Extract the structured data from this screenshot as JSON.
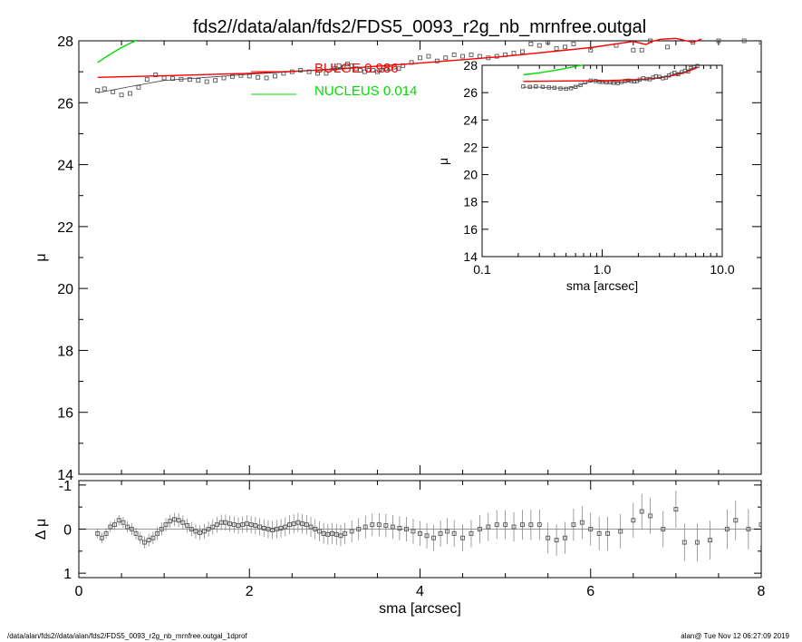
{
  "chart_data": [
    {
      "id": "main",
      "type": "scatter",
      "title": "fds2//data/alan/fds2/FDS5_0093_r2g_nb_mrnfree.outgal",
      "xlabel": "",
      "ylabel": "μ",
      "xlim": [
        0,
        8
      ],
      "ylim": [
        28,
        14
      ],
      "yticks": [
        14,
        16,
        18,
        20,
        22,
        24,
        26,
        28
      ],
      "grid": false,
      "legend": [
        {
          "label": "BULGE  0.986",
          "color": "#ff0000"
        },
        {
          "label": "NUCLEUS  0.014",
          "color": "#00dd00"
        }
      ],
      "series": [
        {
          "name": "data",
          "marker": "square",
          "color": "#555555",
          "x": [
            0.22,
            0.3,
            0.4,
            0.5,
            0.6,
            0.7,
            0.8,
            0.9,
            1.0,
            1.1,
            1.2,
            1.3,
            1.4,
            1.5,
            1.6,
            1.7,
            1.8,
            1.9,
            2.0,
            2.1,
            2.2,
            2.3,
            2.4,
            2.5,
            2.6,
            2.7,
            2.8,
            2.9,
            3.0,
            3.05,
            3.1,
            3.15,
            3.2,
            3.25,
            3.3,
            3.35,
            3.4,
            3.45,
            3.5,
            3.55,
            3.6,
            3.65,
            3.7,
            3.75,
            3.8,
            3.9,
            4.0,
            4.1,
            4.2,
            4.3,
            4.4,
            4.5,
            4.6,
            4.7,
            4.8,
            4.9,
            5.0,
            5.1,
            5.2,
            5.3,
            5.4,
            5.5,
            5.6,
            5.7,
            5.8,
            6.0,
            6.3,
            6.5,
            6.6,
            6.7,
            6.9,
            7.2,
            7.5,
            7.8,
            8.0
          ],
          "y": [
            26.4,
            26.45,
            26.35,
            26.25,
            26.3,
            26.5,
            26.75,
            26.9,
            26.8,
            26.78,
            26.76,
            26.75,
            26.72,
            26.68,
            26.72,
            26.8,
            26.85,
            26.88,
            26.86,
            26.82,
            26.8,
            26.86,
            26.95,
            27.0,
            27.05,
            27.0,
            26.95,
            26.95,
            27.1,
            27.2,
            27.15,
            27.25,
            27.2,
            27.1,
            27.05,
            27.0,
            27.05,
            27.05,
            27.0,
            27.05,
            27.1,
            27.1,
            27.15,
            27.1,
            27.2,
            27.3,
            27.45,
            27.5,
            27.35,
            27.45,
            27.55,
            27.5,
            27.55,
            27.5,
            27.45,
            27.5,
            27.55,
            27.6,
            27.65,
            27.9,
            27.85,
            27.95,
            27.75,
            27.8,
            27.9,
            27.7,
            27.85,
            27.7,
            27.7,
            28.0,
            27.8,
            27.95,
            28.0,
            28.0,
            27.95
          ]
        },
        {
          "name": "BULGE",
          "type": "line",
          "color": "#ff0000",
          "x": [
            0.22,
            1.0,
            2.0,
            3.0,
            4.0,
            5.0,
            6.0,
            6.5,
            6.65,
            6.72,
            6.82,
            7.0,
            7.2,
            7.3
          ],
          "y": [
            26.82,
            26.87,
            26.95,
            27.08,
            27.28,
            27.5,
            27.78,
            27.98,
            27.88,
            27.98,
            28.05,
            28.08,
            27.95,
            28.06
          ]
        },
        {
          "name": "NUCLEUS",
          "type": "line",
          "color": "#00dd00",
          "x": [
            0.22,
            0.3,
            0.4,
            0.5,
            0.6,
            0.68
          ],
          "y": [
            27.3,
            27.45,
            27.62,
            27.78,
            27.92,
            28.02
          ]
        },
        {
          "name": "total",
          "type": "line",
          "color": "#444444",
          "x": [
            0.22,
            0.6,
            1.0,
            1.5,
            2.0,
            2.5,
            3.0,
            3.3
          ],
          "y": [
            26.32,
            26.52,
            26.72,
            26.82,
            26.92,
            27.0,
            27.1,
            27.15
          ]
        }
      ]
    },
    {
      "id": "residual",
      "type": "scatter",
      "xlabel": "sma [arcsec]",
      "ylabel": "Δ μ",
      "xlim": [
        0,
        8
      ],
      "ylim": [
        -1.1,
        1.1
      ],
      "xticks": [
        0,
        2,
        4,
        6,
        8
      ],
      "yticks": [
        1,
        0,
        -1
      ],
      "grid": false,
      "series": [
        {
          "name": "residuals",
          "marker": "square",
          "color": "#555555",
          "x": [
            0.22,
            0.27,
            0.32,
            0.37,
            0.42,
            0.47,
            0.52,
            0.57,
            0.62,
            0.67,
            0.72,
            0.77,
            0.82,
            0.87,
            0.92,
            0.97,
            1.02,
            1.07,
            1.12,
            1.17,
            1.22,
            1.27,
            1.32,
            1.37,
            1.42,
            1.47,
            1.52,
            1.57,
            1.62,
            1.67,
            1.72,
            1.77,
            1.82,
            1.87,
            1.92,
            1.97,
            2.02,
            2.07,
            2.12,
            2.17,
            2.22,
            2.27,
            2.32,
            2.37,
            2.42,
            2.47,
            2.52,
            2.57,
            2.62,
            2.67,
            2.72,
            2.77,
            2.82,
            2.87,
            2.92,
            2.97,
            3.02,
            3.07,
            3.12,
            3.2,
            3.28,
            3.36,
            3.44,
            3.52,
            3.6,
            3.68,
            3.76,
            3.84,
            3.92,
            4.0,
            4.08,
            4.16,
            4.24,
            4.32,
            4.4,
            4.5,
            4.6,
            4.7,
            4.8,
            4.9,
            5.0,
            5.1,
            5.2,
            5.3,
            5.4,
            5.5,
            5.6,
            5.7,
            5.8,
            5.9,
            6.0,
            6.1,
            6.2,
            6.35,
            6.5,
            6.6,
            6.7,
            6.85,
            7.0,
            7.1,
            7.25,
            7.4,
            7.6,
            7.7,
            7.85,
            8.0
          ],
          "y": [
            0.1,
            0.2,
            0.1,
            -0.05,
            -0.1,
            -0.2,
            -0.15,
            -0.05,
            0.0,
            0.1,
            0.2,
            0.3,
            0.25,
            0.2,
            0.1,
            0.0,
            -0.1,
            -0.18,
            -0.22,
            -0.2,
            -0.15,
            -0.08,
            0.0,
            0.05,
            0.08,
            0.05,
            0.0,
            -0.05,
            -0.1,
            -0.15,
            -0.15,
            -0.12,
            -0.1,
            -0.08,
            -0.1,
            -0.12,
            -0.1,
            -0.08,
            -0.05,
            -0.02,
            0.0,
            0.02,
            0.0,
            -0.02,
            -0.05,
            -0.1,
            -0.12,
            -0.15,
            -0.12,
            -0.1,
            -0.05,
            0.0,
            0.05,
            0.1,
            0.12,
            0.1,
            0.12,
            0.15,
            0.1,
            0.05,
            0.0,
            -0.05,
            -0.1,
            -0.1,
            -0.08,
            -0.05,
            -0.02,
            0.0,
            0.05,
            0.1,
            0.15,
            0.2,
            0.1,
            0.05,
            0.1,
            0.2,
            0.1,
            0.0,
            -0.05,
            -0.1,
            -0.1,
            -0.05,
            -0.1,
            -0.1,
            -0.1,
            0.2,
            0.25,
            0.2,
            -0.1,
            -0.15,
            0.0,
            0.1,
            0.1,
            0.05,
            -0.2,
            -0.4,
            -0.3,
            0.0,
            -0.45,
            0.3,
            0.3,
            0.25,
            0.0,
            -0.2,
            0.0,
            -0.1
          ]
        }
      ]
    },
    {
      "id": "inset",
      "type": "scatter",
      "xlabel": "sma [arcsec]",
      "ylabel": "μ",
      "xscale": "log",
      "xlim": [
        0.1,
        10.0
      ],
      "ylim": [
        28,
        14
      ],
      "xticks": [
        "0.1",
        "1.0",
        "10.0"
      ],
      "yticks": [
        14,
        16,
        18,
        20,
        22,
        24,
        26,
        28
      ],
      "grid": false,
      "series": [
        {
          "name": "data",
          "marker": "square",
          "color": "#555555",
          "x": [
            0.22,
            0.25,
            0.28,
            0.32,
            0.36,
            0.4,
            0.45,
            0.5,
            0.55,
            0.6,
            0.66,
            0.72,
            0.8,
            0.88,
            0.95,
            1.0,
            1.08,
            1.16,
            1.25,
            1.35,
            1.45,
            1.55,
            1.65,
            1.75,
            1.85,
            1.95,
            2.05,
            2.2,
            2.35,
            2.5,
            2.65,
            2.8,
            3.0,
            3.2,
            3.4,
            3.6,
            3.8,
            4.0,
            4.3,
            4.6,
            4.9,
            5.2,
            5.5,
            5.8,
            6.2
          ],
          "y": [
            26.45,
            26.42,
            26.45,
            26.42,
            26.38,
            26.35,
            26.3,
            26.28,
            26.32,
            26.42,
            26.55,
            26.75,
            26.88,
            26.85,
            26.8,
            26.78,
            26.76,
            26.75,
            26.72,
            26.7,
            26.78,
            26.85,
            26.88,
            26.85,
            26.82,
            26.85,
            26.95,
            27.05,
            27.0,
            26.98,
            27.1,
            27.2,
            27.15,
            27.05,
            27.1,
            27.25,
            27.35,
            27.45,
            27.35,
            27.5,
            27.6,
            27.55,
            27.8,
            27.85,
            27.95
          ]
        },
        {
          "name": "BULGE",
          "type": "line",
          "color": "#ff0000",
          "x": [
            0.22,
            0.5,
            1.0,
            2.0,
            3.0,
            4.0,
            5.0,
            6.0,
            6.2
          ],
          "y": [
            26.82,
            26.85,
            26.87,
            26.95,
            27.08,
            27.28,
            27.5,
            27.78,
            27.85
          ]
        },
        {
          "name": "NUCLEUS",
          "type": "line",
          "color": "#00dd00",
          "x": [
            0.22,
            0.3,
            0.4,
            0.5,
            0.6,
            0.7
          ],
          "y": [
            27.3,
            27.45,
            27.62,
            27.78,
            27.92,
            28.02
          ]
        },
        {
          "name": "total",
          "type": "line",
          "color": "#444444",
          "x": [
            0.22,
            0.3,
            0.4,
            0.5,
            0.6,
            0.7,
            0.85,
            1.0,
            1.3,
            1.6,
            2.0,
            2.5,
            3.0,
            3.5,
            4.0,
            4.5,
            5.0,
            5.5,
            6.0,
            6.2
          ],
          "y": [
            26.4,
            26.4,
            26.35,
            26.3,
            26.42,
            26.65,
            26.85,
            26.8,
            26.72,
            26.82,
            26.92,
            27.0,
            27.12,
            27.15,
            27.35,
            27.45,
            27.55,
            27.75,
            27.85,
            27.9
          ]
        }
      ]
    }
  ],
  "footer": {
    "left": "/data/alan/fds2//data/alan/fds2/FDS5_0093_r2g_nb_mrnfree.outgal_1dprof",
    "right": "alan@  Tue Nov 12 06:27:09 2019"
  }
}
